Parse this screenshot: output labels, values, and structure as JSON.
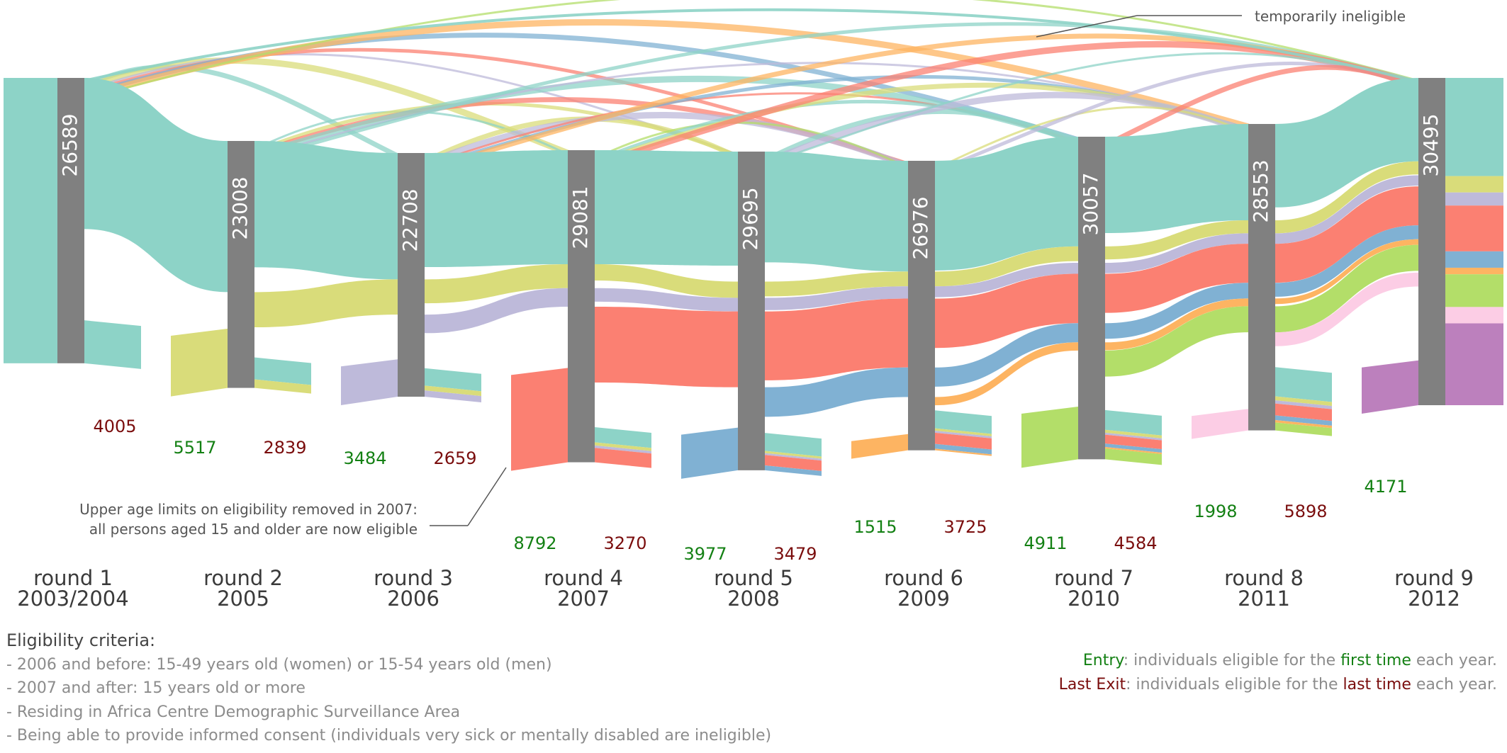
{
  "chart_data": {
    "type": "sankey",
    "rounds": [
      {
        "round": "round 1",
        "year": "2003/2004",
        "eligible": "26589",
        "entry": "",
        "exit": "4005"
      },
      {
        "round": "round 2",
        "year": "2005",
        "eligible": "23008",
        "entry": "5517",
        "exit": "2839"
      },
      {
        "round": "round 3",
        "year": "2006",
        "eligible": "22708",
        "entry": "3484",
        "exit": "2659"
      },
      {
        "round": "round 4",
        "year": "2007",
        "eligible": "29081",
        "entry": "8792",
        "exit": "3270"
      },
      {
        "round": "round 5",
        "year": "2008",
        "eligible": "29695",
        "entry": "3977",
        "exit": "3479"
      },
      {
        "round": "round 6",
        "year": "2009",
        "eligible": "26976",
        "entry": "1515",
        "exit": "3725"
      },
      {
        "round": "round 7",
        "year": "2010",
        "eligible": "30057",
        "entry": "4911",
        "exit": "4584"
      },
      {
        "round": "round 8",
        "year": "2011",
        "eligible": "28553",
        "entry": "1998",
        "exit": "5898"
      },
      {
        "round": "round 9",
        "year": "2012",
        "eligible": "30495",
        "entry": "4171",
        "exit": ""
      }
    ],
    "cohort_colors": [
      "#8dd3c7",
      "#d9dc7a",
      "#bebada",
      "#fb8072",
      "#80b1d3",
      "#fdb462",
      "#b3de69",
      "#fccde5",
      "#bc80bd"
    ],
    "bar_color": "#808080",
    "entry_color": "#138013",
    "exit_color": "#7a0d0d",
    "annotations": {
      "ineligible": "temporarily ineligible",
      "age_line1": "Upper age limits on eligibility removed in 2007:",
      "age_line2": "all persons aged 15 and older are now eligible"
    }
  },
  "criteria": {
    "title": "Eligibility criteria:",
    "items": [
      "- 2006 and before: 15-49 years old (women) or 15-54 years old (men)",
      "- 2007 and after: 15 years old or more",
      "- Residing in Africa Centre Demographic Surveillance Area",
      "- Being able to provide informed consent (individuals very sick or mentally disabled are ineligible)"
    ]
  },
  "legend": {
    "entry_word": "Entry",
    "entry_text1": ": individuals eligible for the ",
    "entry_emph": "first time",
    "entry_text2": " each year.",
    "exit_word": "Last Exit",
    "exit_text1": ": individuals eligible for the  ",
    "exit_emph": "last time",
    "exit_text2": " each year."
  }
}
